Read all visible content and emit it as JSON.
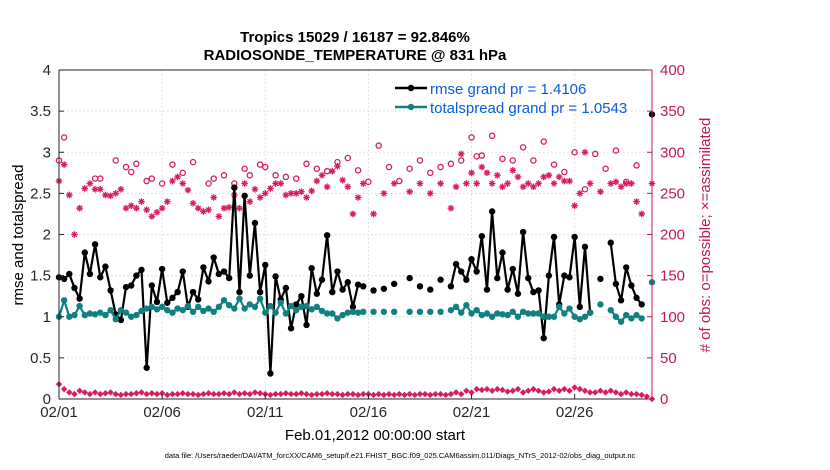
{
  "chart_data": {
    "type": "line",
    "title_line1": "Tropics 15029 / 16187 = 92.846%",
    "title_line2": "RADIOSONDE_TEMPERATURE @ 831 hPa",
    "xlabel": "Feb.01,2012 00:00:00 start",
    "ylabel_left": "rmse and totalspread",
    "ylabel_right": "# of obs: o=possible; ×=assimilated",
    "xlim": [
      1,
      29.75
    ],
    "ylim_left": [
      0,
      4
    ],
    "ylim_right": [
      0,
      400
    ],
    "x_ticks": [
      1,
      6,
      11,
      16,
      21,
      26
    ],
    "x_tick_labels": [
      "02/01",
      "02/06",
      "02/11",
      "02/16",
      "02/21",
      "02/26"
    ],
    "y_ticks_left": [
      "0",
      "0.5",
      "1",
      "1.5",
      "2",
      "2.5",
      "3",
      "3.5",
      "4"
    ],
    "y_ticks_right": [
      "0",
      "50",
      "100",
      "150",
      "200",
      "250",
      "300",
      "350",
      "400"
    ],
    "footer": "data file: /Users/raeder/DAI/ATM_forcXX/CAM6_setup/f.e21.FHIST_BGC.f09_025.CAM6assim.011/Diags_NTrS_2012-02/obs_diag_output.nc",
    "colors": {
      "rmse": "#000000",
      "spread": "#108080",
      "obs": "#d81b60",
      "legend_text": "#0a5ed7",
      "right_axis": "#c2185b"
    },
    "series": [
      {
        "name": "rmse grand pr = 1.4106",
        "x": [
          1.0,
          1.25,
          1.5,
          1.75,
          2.0,
          2.25,
          2.5,
          2.75,
          3.0,
          3.25,
          3.5,
          3.75,
          4.0,
          4.25,
          4.5,
          4.75,
          5.0,
          5.25,
          5.5,
          5.75,
          6.0,
          6.25,
          6.5,
          6.75,
          7.0,
          7.25,
          7.5,
          7.75,
          8.0,
          8.25,
          8.5,
          8.75,
          9.0,
          9.25,
          9.5,
          9.75,
          10.0,
          10.25,
          10.5,
          10.75,
          11.0,
          11.25,
          11.5,
          11.75,
          12.0,
          12.25,
          12.5,
          12.75,
          13.0,
          13.25,
          13.5,
          13.75,
          14.0,
          14.25,
          14.5,
          14.75,
          15.0,
          15.25,
          15.5,
          15.75,
          16.0,
          16.25,
          16.5,
          16.75,
          17.0,
          17.25,
          17.5,
          17.75,
          18.0,
          18.25,
          18.5,
          18.75,
          19.0,
          19.25,
          19.5,
          19.75,
          20.0,
          20.25,
          20.5,
          20.75,
          21.0,
          21.25,
          21.5,
          21.75,
          22.0,
          22.25,
          22.5,
          22.75,
          23.0,
          23.25,
          23.5,
          23.75,
          24.0,
          24.25,
          24.5,
          24.75,
          25.0,
          25.25,
          25.5,
          25.75,
          26.0,
          26.25,
          26.5,
          26.75,
          27.0,
          27.25,
          27.5,
          27.75,
          28.0,
          28.25,
          28.5,
          28.75,
          29.0,
          29.25,
          29.5,
          29.75
        ],
        "values": [
          1.48,
          1.46,
          1.52,
          1.35,
          1.22,
          1.78,
          1.52,
          1.88,
          1.48,
          1.61,
          1.32,
          1.03,
          0.96,
          1.36,
          1.38,
          1.5,
          1.57,
          0.38,
          1.38,
          1.18,
          1.58,
          1.17,
          1.23,
          1.3,
          1.55,
          1.12,
          1.3,
          1.21,
          1.6,
          1.43,
          1.72,
          1.52,
          1.55,
          1.47,
          2.57,
          1.3,
          2.47,
          1.5,
          2.14,
          1.3,
          1.63,
          0.31,
          1.49,
          1.21,
          1.35,
          0.86,
          1.15,
          1.25,
          0.9,
          1.59,
          1.28,
          1.45,
          1.99,
          1.3,
          1.55,
          1.33,
          1.42,
          1.12,
          1.39,
          1.37,
          null,
          1.32,
          null,
          1.34,
          null,
          1.4,
          null,
          null,
          1.47,
          null,
          1.37,
          null,
          1.33,
          null,
          1.45,
          null,
          1.37,
          1.64,
          1.55,
          1.45,
          1.7,
          1.55,
          1.98,
          1.33,
          2.28,
          1.47,
          1.78,
          1.33,
          1.58,
          1.28,
          2.03,
          1.47,
          1.3,
          1.32,
          0.74,
          1.5,
          1.97,
          1.15,
          1.5,
          1.48,
          1.97,
          1.12,
          1.85,
          1.05,
          null,
          1.46,
          null,
          1.9,
          1.4,
          1.2,
          1.6,
          1.38,
          1.23,
          1.15,
          null,
          3.46
        ]
      },
      {
        "name": "totalspread grand pr = 1.0543",
        "x": [
          1.0,
          1.25,
          1.5,
          1.75,
          2.0,
          2.25,
          2.5,
          2.75,
          3.0,
          3.25,
          3.5,
          3.75,
          4.0,
          4.25,
          4.5,
          4.75,
          5.0,
          5.25,
          5.5,
          5.75,
          6.0,
          6.25,
          6.5,
          6.75,
          7.0,
          7.25,
          7.5,
          7.75,
          8.0,
          8.25,
          8.5,
          8.75,
          9.0,
          9.25,
          9.5,
          9.75,
          10.0,
          10.25,
          10.5,
          10.75,
          11.0,
          11.25,
          11.5,
          11.75,
          12.0,
          12.25,
          12.5,
          12.75,
          13.0,
          13.25,
          13.5,
          13.75,
          14.0,
          14.25,
          14.5,
          14.75,
          15.0,
          15.25,
          15.5,
          15.75,
          16.0,
          16.25,
          16.5,
          16.75,
          17.0,
          17.25,
          17.5,
          17.75,
          18.0,
          18.25,
          18.5,
          18.75,
          19.0,
          19.25,
          19.5,
          19.75,
          20.0,
          20.25,
          20.5,
          20.75,
          21.0,
          21.25,
          21.5,
          21.75,
          22.0,
          22.25,
          22.5,
          22.75,
          23.0,
          23.25,
          23.5,
          23.75,
          24.0,
          24.25,
          24.5,
          24.75,
          25.0,
          25.25,
          25.5,
          25.75,
          26.0,
          26.25,
          26.5,
          26.75,
          27.0,
          27.25,
          27.5,
          27.75,
          28.0,
          28.25,
          28.5,
          28.75,
          29.0,
          29.25,
          29.5,
          29.75
        ],
        "values": [
          1.0,
          1.2,
          1.0,
          1.02,
          1.13,
          1.02,
          1.04,
          1.03,
          1.05,
          1.02,
          1.08,
          0.97,
          1.08,
          1.05,
          1.0,
          1.02,
          1.07,
          1.1,
          1.12,
          1.09,
          1.12,
          1.08,
          1.05,
          1.1,
          1.08,
          1.13,
          1.06,
          1.12,
          1.07,
          1.1,
          1.06,
          1.12,
          1.2,
          1.14,
          1.1,
          1.22,
          1.1,
          1.15,
          1.12,
          1.22,
          1.05,
          1.13,
          1.05,
          1.17,
          1.04,
          1.13,
          1.08,
          1.12,
          1.13,
          1.09,
          1.12,
          1.07,
          1.04,
          1.04,
          0.98,
          1.02,
          1.05,
          1.06,
          1.05,
          1.06,
          null,
          1.06,
          null,
          1.06,
          null,
          1.06,
          null,
          null,
          1.06,
          null,
          1.06,
          null,
          1.06,
          null,
          1.06,
          null,
          1.08,
          1.12,
          1.05,
          1.14,
          1.04,
          1.08,
          1.02,
          1.04,
          1.0,
          1.04,
          1.03,
          1.02,
          1.06,
          1.0,
          1.06,
          1.04,
          1.04,
          1.04,
          1.0,
          1.0,
          1.0,
          1.12,
          1.04,
          1.1,
          1.0,
          0.97,
          1.0,
          1.05,
          null,
          1.15,
          null,
          1.08,
          1.0,
          0.94,
          1.02,
          0.98,
          1.02,
          0.98,
          null,
          1.42
        ]
      }
    ],
    "obs_possible": {
      "x": [
        1.0,
        1.25,
        2.75,
        3.0,
        3.75,
        4.25,
        4.5,
        4.75,
        5.25,
        5.5,
        6.0,
        6.5,
        7.0,
        7.5,
        8.25,
        8.5,
        9.0,
        9.5,
        10.0,
        10.25,
        10.75,
        11.0,
        11.5,
        12.0,
        12.5,
        13.0,
        13.5,
        14.0,
        14.5,
        15.0,
        15.5,
        16.0,
        16.5,
        17.0,
        17.5,
        18.0,
        18.5,
        19.0,
        19.5,
        20.0,
        20.5,
        21.0,
        21.25,
        21.5,
        22.0,
        22.5,
        23.0,
        23.5,
        24.0,
        24.5,
        25.0,
        25.5,
        26.0,
        26.5,
        27.0,
        27.5,
        28.0,
        28.5,
        29.0
      ],
      "values": [
        290,
        318,
        268,
        268,
        290,
        282,
        276,
        286,
        265,
        268,
        262,
        285,
        275,
        288,
        262,
        268,
        272,
        262,
        280,
        272,
        285,
        282,
        272,
        270,
        268,
        286,
        280,
        277,
        288,
        293,
        278,
        264,
        308,
        282,
        265,
        280,
        290,
        275,
        282,
        286,
        290,
        318,
        295,
        296,
        320,
        292,
        290,
        306,
        290,
        313,
        285,
        276,
        300,
        255,
        298,
        280,
        302,
        264,
        284
      ]
    },
    "obs_assimilated": {
      "x": [
        1.0,
        1.25,
        1.5,
        1.75,
        2.0,
        2.25,
        2.5,
        2.75,
        3.0,
        3.25,
        3.5,
        3.75,
        4.0,
        4.25,
        4.5,
        4.75,
        5.0,
        5.25,
        5.5,
        5.75,
        6.0,
        6.25,
        6.5,
        6.75,
        7.0,
        7.25,
        7.5,
        7.75,
        8.0,
        8.25,
        8.5,
        8.75,
        9.0,
        9.25,
        9.5,
        9.75,
        10.0,
        10.25,
        10.5,
        10.75,
        11.0,
        11.25,
        11.5,
        11.75,
        12.0,
        12.25,
        12.5,
        12.75,
        13.0,
        13.25,
        13.5,
        13.75,
        14.0,
        14.25,
        14.5,
        14.75,
        15.0,
        15.25,
        15.5,
        15.75,
        16.0,
        16.25,
        16.5,
        16.75,
        17.0,
        17.25,
        17.5,
        17.75,
        18.0,
        18.25,
        18.5,
        18.75,
        19.0,
        19.25,
        19.5,
        19.75,
        20.0,
        20.25,
        20.5,
        20.75,
        21.0,
        21.25,
        21.5,
        21.75,
        22.0,
        22.25,
        22.5,
        22.75,
        23.0,
        23.25,
        23.5,
        23.75,
        24.0,
        24.25,
        24.5,
        24.75,
        25.0,
        25.25,
        25.5,
        25.75,
        26.0,
        26.25,
        26.5,
        26.75,
        27.0,
        27.25,
        27.5,
        27.75,
        28.0,
        28.25,
        28.5,
        28.75,
        29.0,
        29.25,
        29.5,
        29.75
      ],
      "values": [
        265,
        285,
        248,
        200,
        232,
        256,
        262,
        255,
        255,
        248,
        247,
        250,
        255,
        232,
        235,
        232,
        240,
        230,
        222,
        227,
        232,
        240,
        265,
        270,
        262,
        254,
        238,
        232,
        228,
        230,
        245,
        222,
        232,
        233,
        248,
        232,
        262,
        240,
        255,
        245,
        250,
        256,
        262,
        262,
        248,
        250,
        250,
        252,
        245,
        253,
        265,
        272,
        258,
        277,
        283,
        266,
        258,
        225,
        245,
        262,
        null,
        225,
        null,
        250,
        null,
        262,
        null,
        null,
        252,
        null,
        262,
        null,
        250,
        null,
        262,
        null,
        232,
        258,
        298,
        262,
        275,
        262,
        282,
        275,
        262,
        272,
        258,
        262,
        278,
        270,
        258,
        262,
        258,
        262,
        270,
        272,
        262,
        270,
        265,
        265,
        235,
        250,
        300,
        262,
        null,
        252,
        null,
        262,
        264,
        258,
        262,
        262,
        240,
        225,
        null,
        262
      ]
    },
    "obs_small": {
      "x": [
        1.0,
        1.25,
        1.5,
        1.75,
        2.0,
        2.25,
        2.5,
        2.75,
        3.0,
        3.25,
        3.5,
        3.75,
        4.0,
        4.25,
        4.5,
        4.75,
        5.0,
        5.25,
        5.5,
        5.75,
        6.0,
        6.25,
        6.5,
        6.75,
        7.0,
        7.25,
        7.5,
        7.75,
        8.0,
        8.25,
        8.5,
        8.75,
        9.0,
        9.25,
        9.5,
        9.75,
        10.0,
        10.25,
        10.5,
        10.75,
        11.0,
        11.25,
        11.5,
        11.75,
        12.0,
        12.25,
        12.5,
        12.75,
        13.0,
        13.25,
        13.5,
        13.75,
        14.0,
        14.25,
        14.5,
        14.75,
        15.0,
        15.25,
        15.5,
        15.75,
        16.0,
        16.25,
        16.5,
        16.75,
        17.0,
        17.25,
        17.5,
        17.75,
        18.0,
        18.25,
        18.5,
        18.75,
        19.0,
        19.25,
        19.5,
        19.75,
        20.0,
        20.25,
        20.5,
        20.75,
        21.0,
        21.25,
        21.5,
        21.75,
        22.0,
        22.25,
        22.5,
        22.75,
        23.0,
        23.25,
        23.5,
        23.75,
        24.0,
        24.25,
        24.5,
        24.75,
        25.0,
        25.25,
        25.5,
        25.75,
        26.0,
        26.25,
        26.5,
        26.75,
        27.0,
        27.25,
        27.5,
        27.75,
        28.0,
        28.25,
        28.5,
        28.75,
        29.0,
        29.25,
        29.5,
        29.75
      ],
      "values": [
        18,
        12,
        8,
        6,
        10,
        8,
        6,
        8,
        6,
        7,
        8,
        6,
        5,
        6,
        6,
        7,
        8,
        6,
        7,
        6,
        7,
        5,
        6,
        6,
        7,
        6,
        6,
        5,
        6,
        7,
        6,
        6,
        7,
        6,
        8,
        6,
        7,
        6,
        8,
        7,
        6,
        5,
        6,
        6,
        7,
        6,
        6,
        7,
        6,
        5,
        6,
        6,
        7,
        6,
        6,
        5,
        6,
        6,
        5,
        6,
        6,
        5,
        6,
        5,
        6,
        5,
        6,
        5,
        6,
        5,
        6,
        6,
        5,
        6,
        6,
        5,
        6,
        8,
        6,
        10,
        8,
        12,
        11,
        12,
        10,
        12,
        11,
        9,
        10,
        12,
        8,
        10,
        12,
        10,
        8,
        9,
        12,
        10,
        12,
        10,
        14,
        12,
        10,
        8,
        8,
        10,
        8,
        10,
        8,
        6,
        8,
        6,
        6,
        5,
        3,
        0
      ]
    }
  }
}
